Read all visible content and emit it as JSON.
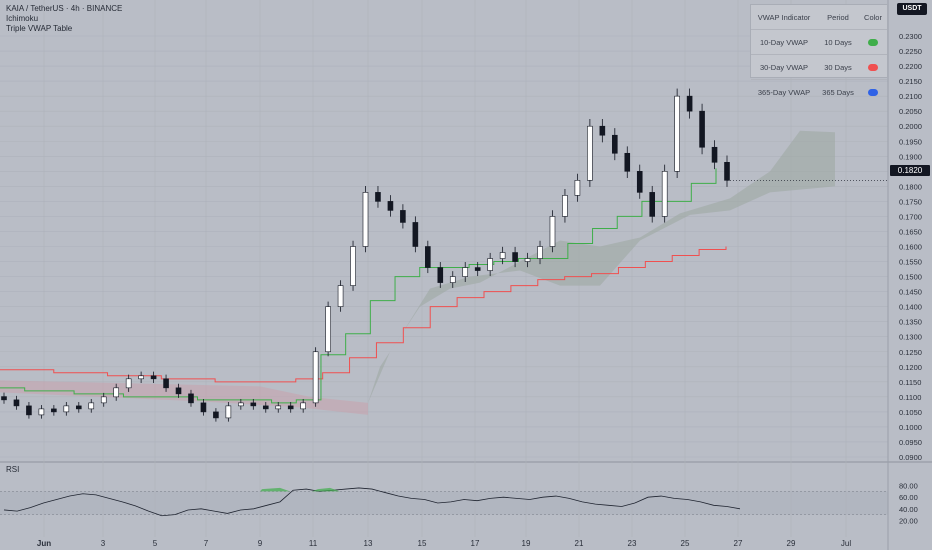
{
  "legend": {
    "symbol_line": "KAIA / TetherUS · 4h · BINANCE",
    "indicator_1": "Ichimoku",
    "indicator_2": "Triple VWAP Table"
  },
  "currency_badge": "USDT",
  "current_price": "0.1820",
  "rsi_label": "RSI",
  "vwap_table": {
    "headers": [
      "VWAP Indicator",
      "Period",
      "Color"
    ],
    "rows": [
      {
        "name": "10-Day VWAP",
        "period": "10 Days",
        "color": "#3fae4a"
      },
      {
        "name": "30-Day VWAP",
        "period": "30 Days",
        "color": "#f05050"
      },
      {
        "name": "365-Day VWAP",
        "period": "365 Days",
        "color": "#2f62e6"
      }
    ]
  },
  "price_axis_labels": [
    "0.2300",
    "0.2250",
    "0.2200",
    "0.2150",
    "0.2100",
    "0.2050",
    "0.2000",
    "0.1950",
    "0.1900",
    "0.1850",
    "0.1800",
    "0.1750",
    "0.1700",
    "0.1650",
    "0.1600",
    "0.1550",
    "0.1500",
    "0.1450",
    "0.1400",
    "0.1350",
    "0.1300",
    "0.1250",
    "0.1200",
    "0.1150",
    "0.1100",
    "0.1050",
    "0.1000",
    "0.0950",
    "0.0900"
  ],
  "rsi_axis_labels": [
    "80.00",
    "60.00",
    "40.00",
    "20.00"
  ],
  "time_axis_labels": [
    "Jun",
    "3",
    "5",
    "7",
    "9",
    "11",
    "13",
    "15",
    "17",
    "19",
    "21",
    "23",
    "25",
    "27",
    "29",
    "Jul"
  ],
  "colors": {
    "background": "#b9bdc6",
    "vwap_10": "#3fae4a",
    "vwap_30": "#f05050",
    "cloud": "#9fa9a4",
    "candle_up": "#ffffff",
    "candle_down": "#131722"
  },
  "chart_data": {
    "type": "candlestick",
    "timeframe": "4h",
    "x_range": [
      "May 30",
      "Jul 1"
    ],
    "ylim": [
      0.0875,
      0.233
    ],
    "price_closes": [
      0.109,
      0.107,
      0.104,
      0.106,
      0.105,
      0.107,
      0.106,
      0.108,
      0.11,
      0.113,
      0.116,
      0.117,
      0.116,
      0.113,
      0.111,
      0.108,
      0.105,
      0.103,
      0.107,
      0.108,
      0.107,
      0.106,
      0.107,
      0.106,
      0.108,
      0.125,
      0.14,
      0.147,
      0.16,
      0.178,
      0.175,
      0.172,
      0.168,
      0.16,
      0.153,
      0.148,
      0.15,
      0.153,
      0.152,
      0.156,
      0.158,
      0.155,
      0.156,
      0.16,
      0.17,
      0.177,
      0.182,
      0.2,
      0.197,
      0.191,
      0.185,
      0.178,
      0.17,
      0.185,
      0.21,
      0.205,
      0.193,
      0.188,
      0.182
    ],
    "vwap_10_values": [
      0.113,
      0.112,
      0.112,
      0.111,
      0.111,
      0.11,
      0.11,
      0.11,
      0.109,
      0.109,
      0.109,
      0.108,
      0.109,
      0.124,
      0.131,
      0.142,
      0.15,
      0.153,
      0.153,
      0.154,
      0.155,
      0.156,
      0.156,
      0.161,
      0.166,
      0.17,
      0.175,
      0.175,
      0.181,
      0.186
    ],
    "vwap_30_values": [
      0.119,
      0.119,
      0.118,
      0.118,
      0.117,
      0.117,
      0.116,
      0.116,
      0.115,
      0.115,
      0.115,
      0.116,
      0.118,
      0.123,
      0.128,
      0.133,
      0.14,
      0.143,
      0.145,
      0.147,
      0.149,
      0.15,
      0.151,
      0.153,
      0.155,
      0.157,
      0.159,
      0.16
    ],
    "rsi_values": [
      38,
      36,
      42,
      50,
      56,
      62,
      66,
      64,
      58,
      52,
      45,
      36,
      28,
      30,
      38,
      40,
      36,
      32,
      38,
      40,
      46,
      52,
      72,
      74,
      70,
      72,
      74,
      76,
      74,
      68,
      62,
      58,
      56,
      50,
      52,
      56,
      54,
      58,
      60,
      58,
      56,
      60,
      62,
      58,
      52,
      48,
      46,
      44,
      50,
      60,
      62,
      58,
      56,
      52,
      46,
      44,
      40
    ],
    "rsi_levels": [
      70,
      30
    ]
  }
}
